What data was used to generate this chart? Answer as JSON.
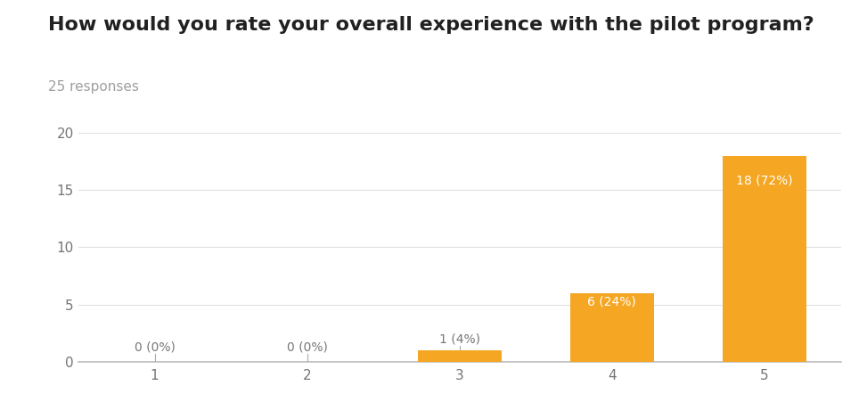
{
  "title": "How would you rate your overall experience with the pilot program?",
  "subtitle": "25 responses",
  "categories": [
    1,
    2,
    3,
    4,
    5
  ],
  "values": [
    0,
    0,
    1,
    6,
    18
  ],
  "bar_labels": [
    "0 (0%)",
    "0 (0%)",
    "1 (4%)",
    "6 (24%)",
    "18 (72%)"
  ],
  "bar_color": "#F5A623",
  "label_color_inside": "#FFFFFF",
  "label_color_outside": "#777777",
  "background_color": "#FFFFFF",
  "ylim": [
    0,
    20
  ],
  "yticks": [
    0,
    5,
    10,
    15,
    20
  ],
  "title_fontsize": 16,
  "subtitle_fontsize": 11,
  "tick_fontsize": 11,
  "label_fontsize": 10,
  "grid_color": "#E0E0E0",
  "bar_width": 0.55,
  "title_color": "#212121",
  "subtitle_color": "#9E9E9E",
  "tick_color": "#757575"
}
